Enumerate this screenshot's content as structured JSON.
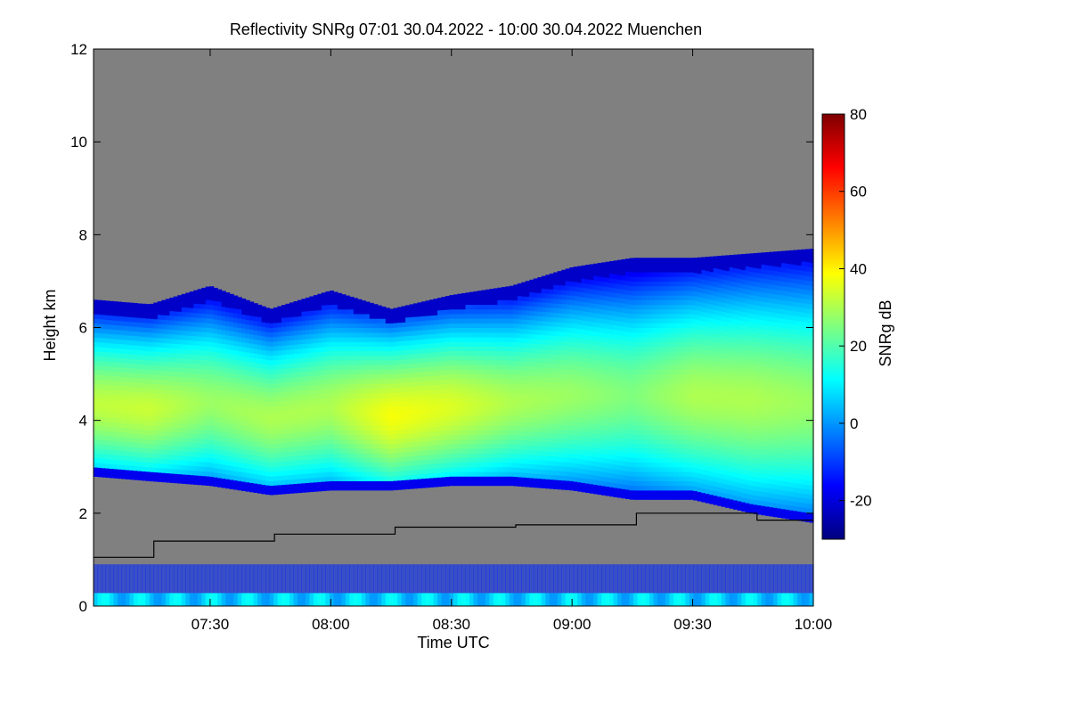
{
  "chart_data": {
    "type": "heatmap",
    "title": "Reflectivity SNRg   07:01 30.04.2022 - 10:00 30.04.2022 Muenchen",
    "xlabel": "Time UTC",
    "ylabel": "Height km",
    "xlim": [
      "07:01",
      "10:00"
    ],
    "ylim": [
      0,
      12
    ],
    "x_ticks": [
      "07:30",
      "08:00",
      "08:30",
      "09:00",
      "09:30",
      "10:00"
    ],
    "y_ticks": [
      "0",
      "2",
      "4",
      "6",
      "8",
      "10",
      "12"
    ],
    "background_color": "#808080",
    "colorbar": {
      "label": "SNRg dB",
      "range": [
        -30,
        80
      ],
      "ticks": [
        "-20",
        "0",
        "20",
        "40",
        "60",
        "80"
      ],
      "colors": [
        "#00007f",
        "#0000ff",
        "#007fff",
        "#00ffff",
        "#7fff7f",
        "#ffff00",
        "#ff7f00",
        "#ff0000",
        "#7f0000"
      ]
    },
    "cloud_layer": {
      "time": [
        "07:01",
        "07:15",
        "07:30",
        "07:45",
        "08:00",
        "08:15",
        "08:30",
        "08:45",
        "09:00",
        "09:15",
        "09:30",
        "09:45",
        "10:00"
      ],
      "base_km": [
        2.8,
        2.7,
        2.6,
        2.4,
        2.5,
        2.5,
        2.6,
        2.6,
        2.5,
        2.3,
        2.3,
        2.0,
        1.8
      ],
      "top_km": [
        6.6,
        6.5,
        6.9,
        6.4,
        6.8,
        6.4,
        6.7,
        6.9,
        7.3,
        7.5,
        7.5,
        7.6,
        7.7
      ],
      "core_snr_db": [
        32,
        33,
        28,
        30,
        30,
        38,
        35,
        30,
        28,
        25,
        30,
        30,
        28
      ]
    },
    "line_series": {
      "name": "",
      "color": "#000000",
      "x": [
        "07:01",
        "07:16",
        "07:16",
        "07:46",
        "07:46",
        "08:16",
        "08:16",
        "08:46",
        "08:46",
        "09:16",
        "09:16",
        "09:46",
        "09:46",
        "10:00"
      ],
      "y": [
        1.05,
        1.05,
        1.4,
        1.4,
        1.55,
        1.55,
        1.7,
        1.7,
        1.75,
        1.75,
        2.0,
        2.0,
        1.85,
        1.85
      ]
    }
  }
}
